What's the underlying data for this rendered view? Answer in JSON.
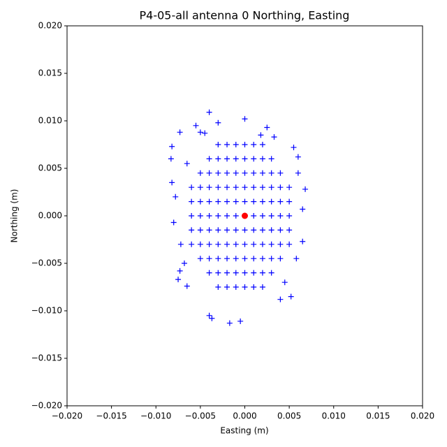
{
  "chart_data": {
    "type": "scatter",
    "title": "P4-05-all antenna 0 Northing, Easting",
    "x_label": "Easting (m)",
    "y_label": "Northing (m)",
    "xlim": [
      -0.02,
      0.02
    ],
    "ylim": [
      -0.02,
      0.02
    ],
    "xticks": [
      {
        "value": -0.02,
        "label": "−0.020"
      },
      {
        "value": -0.015,
        "label": "−0.015"
      },
      {
        "value": -0.01,
        "label": "−0.010"
      },
      {
        "value": -0.005,
        "label": "−0.005"
      },
      {
        "value": 0,
        "label": "0.000"
      },
      {
        "value": 0.005,
        "label": "0.005"
      },
      {
        "value": 0.01,
        "label": "0.010"
      },
      {
        "value": 0.015,
        "label": "0.015"
      },
      {
        "value": 0.02,
        "label": "0.020"
      }
    ],
    "yticks": [
      {
        "value": -0.02,
        "label": "−0.020"
      },
      {
        "value": -0.015,
        "label": "−0.015"
      },
      {
        "value": -0.01,
        "label": "−0.010"
      },
      {
        "value": -0.005,
        "label": "−0.005"
      },
      {
        "value": 0,
        "label": "0.000"
      },
      {
        "value": 0.005,
        "label": "0.005"
      },
      {
        "value": 0.01,
        "label": "0.010"
      },
      {
        "value": 0.015,
        "label": "0.015"
      },
      {
        "value": 0.02,
        "label": "0.020"
      }
    ],
    "series": [
      {
        "color": "#0000ff",
        "marker": "+",
        "x": [
          -0.003,
          -0.002,
          -0.001,
          0,
          0.001,
          0.002,
          -0.004,
          -0.003,
          -0.002,
          -0.001,
          0,
          0.001,
          0.002,
          0.003,
          -0.005,
          -0.004,
          -0.003,
          -0.002,
          -0.001,
          0,
          0.001,
          0.002,
          0.003,
          0.004,
          -0.006,
          -0.005,
          -0.004,
          -0.003,
          -0.002,
          -0.001,
          0,
          0.001,
          0.002,
          0.003,
          0.004,
          0.005,
          -0.006,
          -0.005,
          -0.004,
          -0.003,
          -0.002,
          -0.001,
          0,
          0.001,
          0.002,
          0.003,
          0.004,
          0.005,
          -0.006,
          -0.005,
          -0.004,
          -0.003,
          -0.002,
          -0.001,
          0,
          0.001,
          0.002,
          0.003,
          0.004,
          0.005,
          -0.006,
          -0.005,
          -0.004,
          -0.003,
          -0.002,
          -0.001,
          0,
          0.001,
          0.002,
          0.003,
          0.004,
          0.005,
          -0.006,
          -0.005,
          -0.004,
          -0.003,
          -0.002,
          -0.001,
          0,
          0.001,
          0.002,
          0.003,
          0.004,
          0.005,
          -0.005,
          -0.004,
          -0.003,
          -0.002,
          -0.001,
          0,
          0.001,
          0.002,
          0.003,
          0.004,
          -0.004,
          -0.003,
          -0.002,
          -0.001,
          0,
          0.001,
          0.002,
          0.003,
          -0.003,
          -0.002,
          -0.001,
          0,
          0.001,
          0.002,
          -0.004,
          0,
          -0.0082,
          -0.0073,
          -0.0083,
          -0.0075,
          -0.0065,
          -0.004,
          -0.0037,
          -0.0017,
          -0.0005,
          0.0052,
          0.0068,
          0.0065,
          0.0065,
          0.0055,
          0.006,
          0.0033,
          -0.0055,
          -0.005,
          -0.0045,
          -0.003,
          0.0025,
          0.0018,
          0.004,
          -0.0082,
          -0.0078,
          -0.008,
          -0.0072,
          -0.0073,
          -0.0068,
          0.0045,
          -0.0065,
          0.006,
          0.0058
        ],
        "y": [
          0.0075,
          0.0075,
          0.0075,
          0.0075,
          0.0075,
          0.0075,
          0.006,
          0.006,
          0.006,
          0.006,
          0.006,
          0.006,
          0.006,
          0.006,
          0.0045,
          0.0045,
          0.0045,
          0.0045,
          0.0045,
          0.0045,
          0.0045,
          0.0045,
          0.0045,
          0.0045,
          0.003,
          0.003,
          0.003,
          0.003,
          0.003,
          0.003,
          0.003,
          0.003,
          0.003,
          0.003,
          0.003,
          0.003,
          0.0015,
          0.0015,
          0.0015,
          0.0015,
          0.0015,
          0.0015,
          0.0015,
          0.0015,
          0.0015,
          0.0015,
          0.0015,
          0.0015,
          0,
          0,
          0,
          0,
          0,
          0,
          0,
          0,
          0,
          0,
          0,
          0,
          -0.0015,
          -0.0015,
          -0.0015,
          -0.0015,
          -0.0015,
          -0.0015,
          -0.0015,
          -0.0015,
          -0.0015,
          -0.0015,
          -0.0015,
          -0.0015,
          -0.003,
          -0.003,
          -0.003,
          -0.003,
          -0.003,
          -0.003,
          -0.003,
          -0.003,
          -0.003,
          -0.003,
          -0.003,
          -0.003,
          -0.0045,
          -0.0045,
          -0.0045,
          -0.0045,
          -0.0045,
          -0.0045,
          -0.0045,
          -0.0045,
          -0.0045,
          -0.0045,
          -0.006,
          -0.006,
          -0.006,
          -0.006,
          -0.006,
          -0.006,
          -0.006,
          -0.006,
          -0.0075,
          -0.0075,
          -0.0075,
          -0.0075,
          -0.0075,
          -0.0075,
          0.0109,
          0.0102,
          0.0073,
          0.0088,
          0.006,
          -0.0067,
          -0.0074,
          -0.0105,
          -0.0108,
          -0.0113,
          -0.0111,
          -0.0085,
          0.0028,
          0.0007,
          -0.0027,
          0.0072,
          0.0062,
          0.0083,
          0.0095,
          0.0088,
          0.0087,
          0.0098,
          0.0093,
          0.0085,
          -0.0088,
          0.0035,
          0.002,
          -0.0007,
          -0.003,
          -0.0058,
          -0.005,
          -0.007,
          0.0055,
          0.0045,
          -0.0045
        ]
      },
      {
        "color": "#ff0000",
        "marker": "o",
        "x": [
          0
        ],
        "y": [
          0
        ]
      }
    ]
  }
}
